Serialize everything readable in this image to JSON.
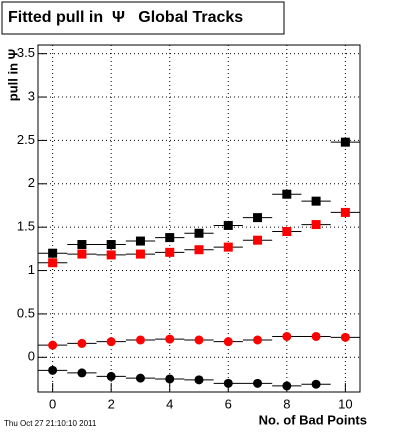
{
  "chart_data": {
    "type": "scatter",
    "title": "Fitted pull in  Ψ   Global Tracks",
    "y_label": "pull in Ψ",
    "x_label": "No. of Bad Points",
    "timestamp": "Thu Oct 27 21:10:10 2011",
    "x": [
      0,
      1,
      2,
      3,
      4,
      5,
      6,
      7,
      8,
      9,
      10
    ],
    "series": [
      {
        "color": "#000000",
        "marker": "square",
        "values": [
          1.2,
          1.3,
          1.3,
          1.34,
          1.38,
          1.43,
          1.52,
          1.61,
          1.88,
          1.8,
          2.48
        ]
      },
      {
        "color": "#ff0000",
        "marker": "square",
        "values": [
          1.09,
          1.19,
          1.18,
          1.19,
          1.21,
          1.24,
          1.27,
          1.35,
          1.45,
          1.53,
          1.67
        ]
      },
      {
        "color": "#ff0000",
        "marker": "circle",
        "values": [
          0.14,
          0.16,
          0.18,
          0.2,
          0.21,
          0.2,
          0.18,
          0.2,
          0.24,
          0.24,
          0.23
        ]
      },
      {
        "color": "#000000",
        "marker": "circle",
        "values": [
          -0.15,
          -0.18,
          -0.22,
          -0.24,
          -0.25,
          -0.26,
          -0.3,
          -0.3,
          -0.33,
          -0.31,
          null
        ]
      }
    ],
    "xlim": [
      -0.5,
      10.5
    ],
    "xticks": [
      0,
      2,
      4,
      6,
      8,
      10
    ],
    "ylim": [
      -0.4,
      3.6
    ],
    "yticks": [
      0,
      0.5,
      1,
      1.5,
      2,
      2.5,
      3,
      3.5
    ],
    "grid": true
  }
}
